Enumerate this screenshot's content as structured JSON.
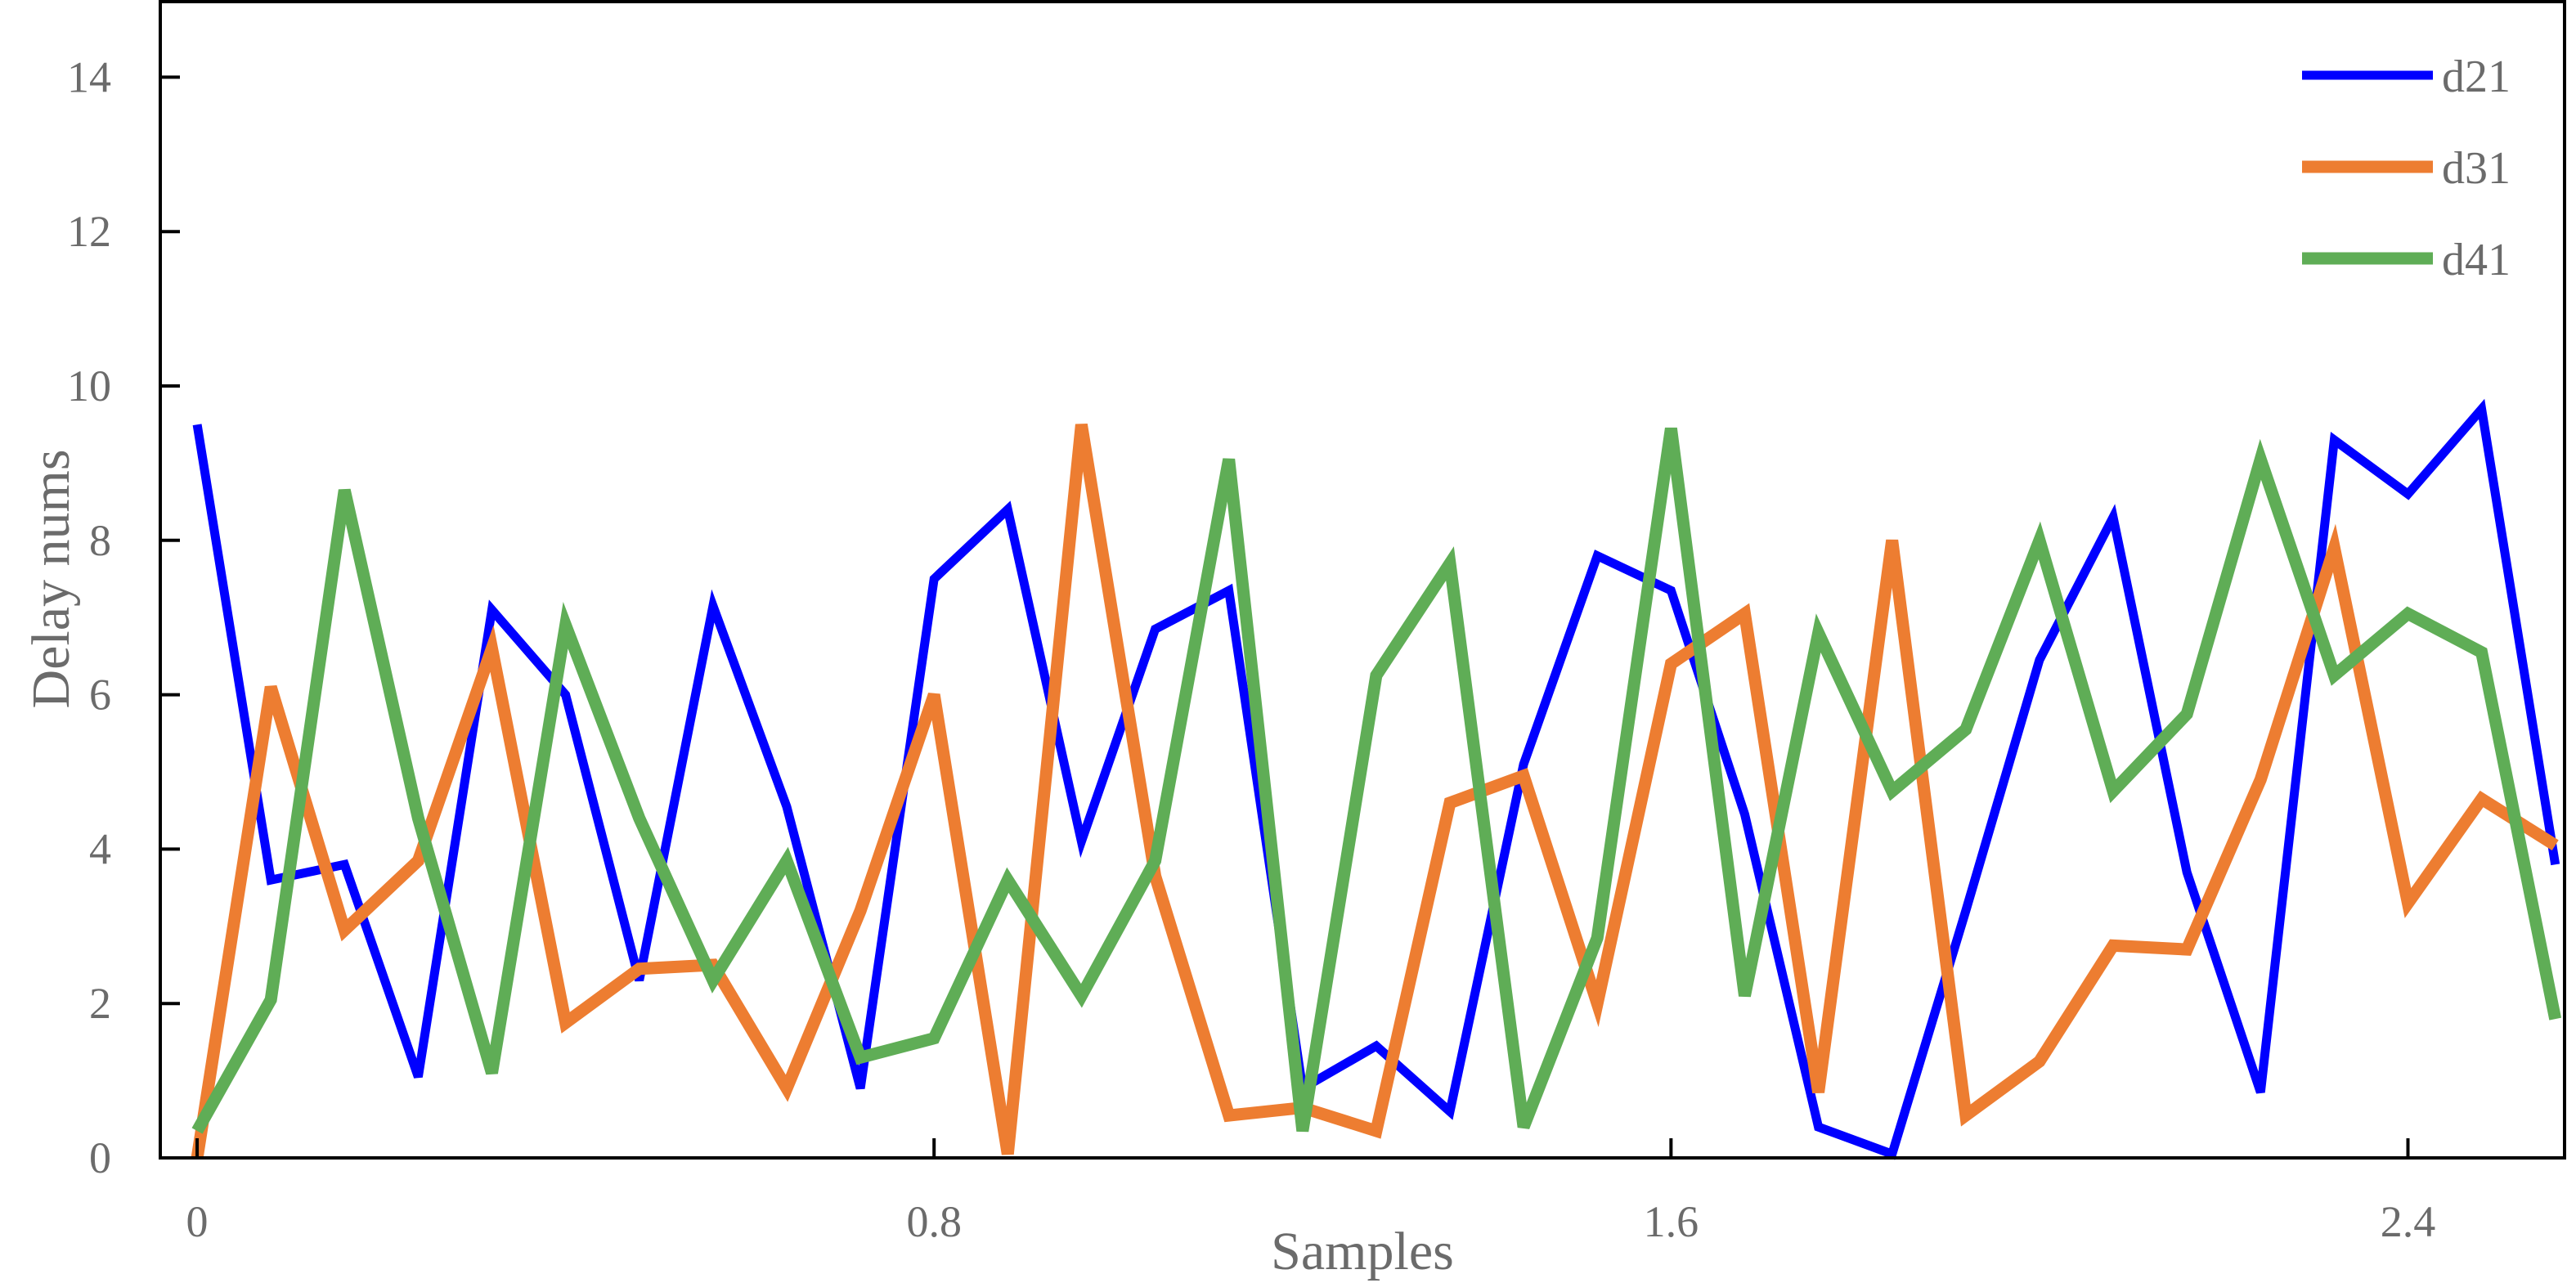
{
  "chart_data": {
    "type": "line",
    "title": "",
    "xlabel": "Samples",
    "ylabel": "Delay nums",
    "xlim": [
      -0.04,
      2.57
    ],
    "ylim": [
      0,
      15
    ],
    "x_ticks": [
      0,
      0.8,
      1.6,
      2.4
    ],
    "x_tick_labels": [
      "0",
      "0.8",
      "1.6",
      "2.4"
    ],
    "y_ticks": [
      0,
      2,
      4,
      6,
      8,
      10,
      12,
      14
    ],
    "y_tick_labels": [
      "0",
      "2",
      "4",
      "6",
      "8",
      "10",
      "12",
      "14"
    ],
    "grid": false,
    "legend_position": "top-right",
    "x": [
      0.0,
      0.08,
      0.16,
      0.24,
      0.32,
      0.4,
      0.48,
      0.56,
      0.64,
      0.72,
      0.8,
      0.88,
      0.96,
      1.04,
      1.12,
      1.2,
      1.28,
      1.36,
      1.44,
      1.52,
      1.6,
      1.68,
      1.76,
      1.84,
      1.92,
      2.0,
      2.08,
      2.16,
      2.24,
      2.32,
      2.4,
      2.48,
      2.56
    ],
    "series": [
      {
        "name": "d21",
        "color": "#0000ff",
        "values": [
          9.5,
          3.6,
          3.8,
          1.05,
          7.1,
          6.0,
          2.3,
          7.15,
          4.55,
          0.9,
          7.5,
          8.4,
          4.1,
          6.85,
          7.35,
          0.9,
          1.45,
          0.6,
          5.1,
          7.8,
          7.35,
          4.45,
          0.4,
          0.05,
          3.2,
          6.45,
          8.3,
          3.7,
          0.85,
          9.3,
          8.6,
          9.7,
          3.8
        ]
      },
      {
        "name": "d31",
        "color": "#ed7d31",
        "values": [
          0.0,
          6.1,
          2.95,
          3.85,
          6.6,
          1.75,
          2.45,
          2.5,
          0.9,
          3.2,
          6.0,
          0.05,
          9.5,
          3.65,
          0.55,
          0.65,
          0.35,
          4.6,
          4.95,
          2.0,
          6.4,
          7.05,
          0.85,
          8.0,
          0.55,
          1.25,
          2.75,
          2.7,
          4.9,
          7.9,
          3.3,
          4.65,
          4.05
        ]
      },
      {
        "name": "d41",
        "color": "#5fad56",
        "values": [
          0.35,
          2.05,
          8.65,
          4.4,
          1.1,
          6.9,
          4.4,
          2.3,
          3.85,
          1.3,
          1.55,
          3.6,
          2.1,
          3.85,
          9.05,
          0.35,
          6.25,
          7.7,
          0.4,
          2.85,
          9.45,
          2.1,
          6.8,
          4.75,
          5.55,
          8.0,
          4.75,
          5.75,
          9.05,
          6.25,
          7.05,
          6.55,
          1.8
        ]
      }
    ]
  }
}
